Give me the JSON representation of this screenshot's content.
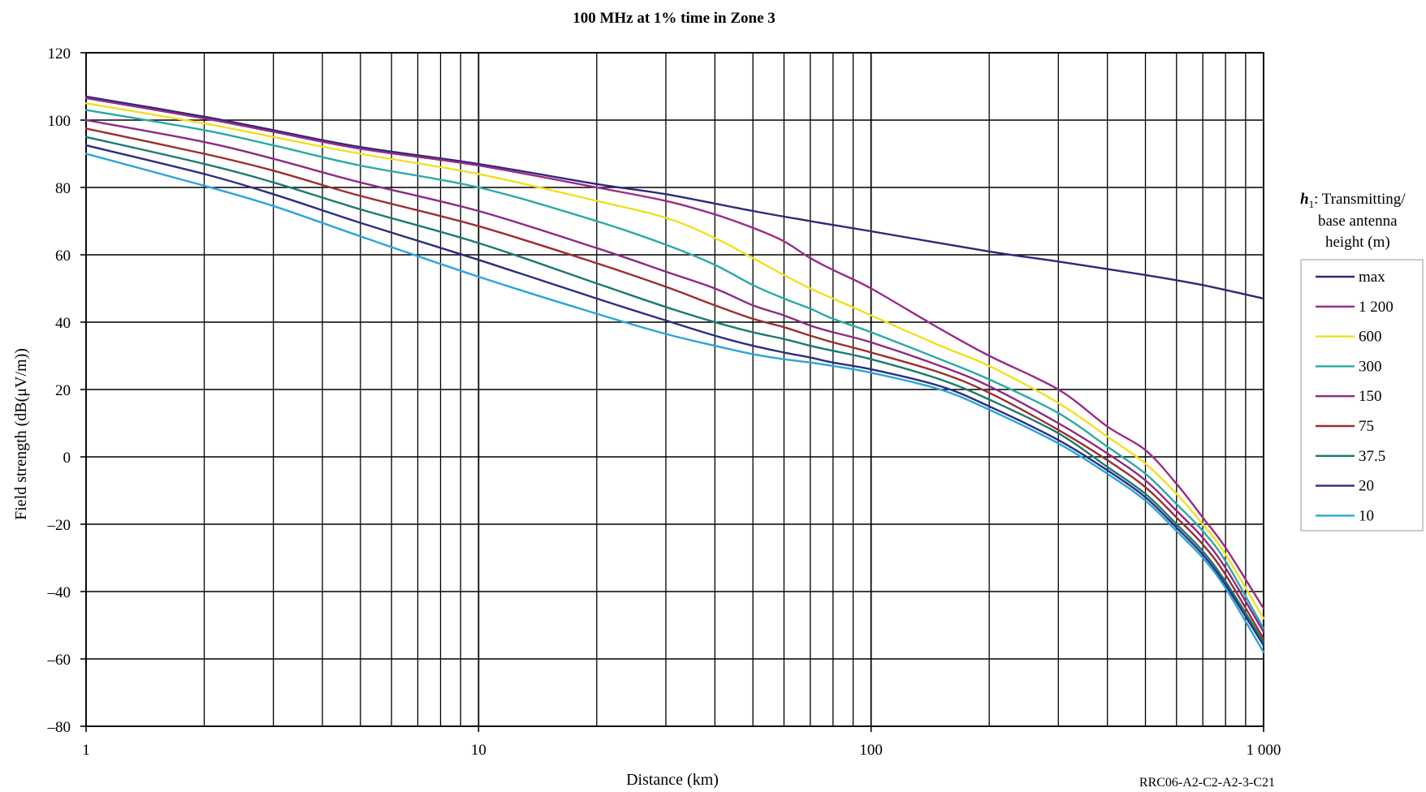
{
  "chart_data": {
    "type": "line",
    "title": "100 MHz at 1% time in Zone 3",
    "xlabel": "Distance (km)",
    "ylabel": "Field strength (dB(μV/m))",
    "xscale": "log",
    "xlim": [
      1,
      1000
    ],
    "ylim": [
      -80,
      120
    ],
    "x_ticks": [
      1,
      10,
      100,
      1000
    ],
    "x_tick_labels": [
      "1",
      "10",
      "100",
      "1 000"
    ],
    "y_ticks": [
      120,
      100,
      80,
      60,
      40,
      20,
      0,
      -20,
      -40,
      -60,
      -80
    ],
    "y_tick_labels": [
      "120",
      "100",
      "80",
      "60",
      "40",
      "20",
      "0",
      "–20",
      "–40",
      "–60",
      "–80"
    ],
    "grid": true,
    "legend_position": "right",
    "legend_title_symbol": "h",
    "legend_title_sub": "1",
    "legend_title_lines": [
      ": Transmitting/",
      "base antenna",
      "height (m)"
    ],
    "reference_code": "RRC06-A2-C2-A2-3-C21",
    "series": [
      {
        "name": "max",
        "color": "#2b2a78",
        "x": [
          1,
          2,
          3,
          5,
          10,
          20,
          30,
          50,
          70,
          100,
          200,
          300,
          500,
          700,
          1000
        ],
        "y": [
          107,
          101,
          97,
          92,
          87,
          81,
          78,
          73,
          70,
          67,
          61,
          58,
          54,
          51,
          47
        ]
      },
      {
        "name": "1 200",
        "color": "#9c2a86",
        "x": [
          1,
          2,
          3,
          5,
          10,
          20,
          30,
          40,
          50,
          60,
          70,
          80,
          100,
          150,
          200,
          300,
          400,
          500,
          600,
          700,
          800,
          1000
        ],
        "y": [
          106.5,
          100.5,
          96.5,
          91.5,
          86.5,
          80,
          76,
          72,
          68,
          64,
          59,
          55.5,
          50,
          38,
          30,
          20,
          9,
          2,
          -8,
          -18,
          -27,
          -45
        ]
      },
      {
        "name": "600",
        "color": "#f0e020",
        "x": [
          1,
          2,
          3,
          5,
          10,
          20,
          30,
          40,
          50,
          60,
          70,
          80,
          100,
          150,
          200,
          300,
          400,
          500,
          600,
          700,
          800,
          1000
        ],
        "y": [
          105,
          99,
          95,
          90,
          84,
          76,
          71,
          65,
          59,
          54,
          50,
          47,
          42,
          33,
          27,
          16,
          6,
          -2,
          -11,
          -20,
          -29,
          -48
        ]
      },
      {
        "name": "300",
        "color": "#2aaaa5",
        "x": [
          1,
          2,
          3,
          5,
          10,
          20,
          30,
          40,
          50,
          60,
          70,
          80,
          100,
          150,
          200,
          300,
          400,
          500,
          600,
          700,
          800,
          1000
        ],
        "y": [
          103,
          97,
          92.5,
          86.5,
          80,
          70,
          63,
          57,
          51,
          47,
          44,
          41,
          37,
          29,
          23,
          13,
          3,
          -5,
          -14,
          -22,
          -31,
          -51
        ]
      },
      {
        "name": "150",
        "color": "#8b2a84",
        "x": [
          1,
          2,
          3,
          5,
          10,
          20,
          30,
          40,
          50,
          60,
          70,
          80,
          100,
          150,
          200,
          300,
          400,
          500,
          600,
          700,
          800,
          1000
        ],
        "y": [
          100,
          93.5,
          88.5,
          81.5,
          73,
          62,
          55,
          50,
          45,
          42,
          39,
          37,
          34,
          27,
          21,
          10,
          1,
          -7,
          -16,
          -24,
          -33,
          -52
        ]
      },
      {
        "name": "75",
        "color": "#9e2d2d",
        "x": [
          1,
          2,
          3,
          5,
          10,
          20,
          30,
          40,
          50,
          60,
          70,
          80,
          100,
          150,
          200,
          300,
          400,
          500,
          600,
          700,
          800,
          1000
        ],
        "y": [
          97.5,
          90,
          85,
          77.5,
          68.5,
          57.5,
          50.5,
          45,
          41,
          38.5,
          36,
          34,
          31,
          25,
          19,
          8,
          -1,
          -9,
          -18,
          -26,
          -35,
          -54
        ]
      },
      {
        "name": "37.5",
        "color": "#1a7a6e",
        "x": [
          1,
          2,
          3,
          5,
          10,
          20,
          30,
          40,
          50,
          60,
          70,
          80,
          100,
          150,
          200,
          300,
          400,
          500,
          600,
          700,
          800,
          1000
        ],
        "y": [
          95,
          87,
          81.5,
          73.5,
          63.5,
          51.5,
          44.5,
          40,
          37,
          35,
          33,
          31.5,
          29,
          23,
          17,
          7,
          -3,
          -11,
          -20,
          -28,
          -37,
          -55
        ]
      },
      {
        "name": "20",
        "color": "#2d2d80",
        "x": [
          1,
          2,
          3,
          5,
          10,
          20,
          30,
          40,
          50,
          60,
          70,
          80,
          100,
          150,
          200,
          300,
          400,
          500,
          600,
          700,
          800,
          1000
        ],
        "y": [
          92.5,
          84,
          78,
          69.5,
          58.5,
          47,
          40.5,
          36,
          33,
          31,
          29.5,
          28,
          26,
          21,
          15,
          5,
          -4,
          -12,
          -21,
          -29,
          -38,
          -56
        ]
      },
      {
        "name": "10",
        "color": "#2aa6d8",
        "x": [
          1,
          2,
          3,
          5,
          10,
          20,
          30,
          40,
          50,
          60,
          70,
          80,
          100,
          150,
          200,
          300,
          400,
          500,
          600,
          700,
          800,
          1000
        ],
        "y": [
          90,
          80.5,
          74.5,
          65.5,
          53.5,
          42.5,
          36.5,
          33,
          30.5,
          29,
          28,
          27,
          25,
          20,
          14,
          4,
          -5,
          -13,
          -22,
          -30,
          -39,
          -58
        ]
      }
    ]
  }
}
